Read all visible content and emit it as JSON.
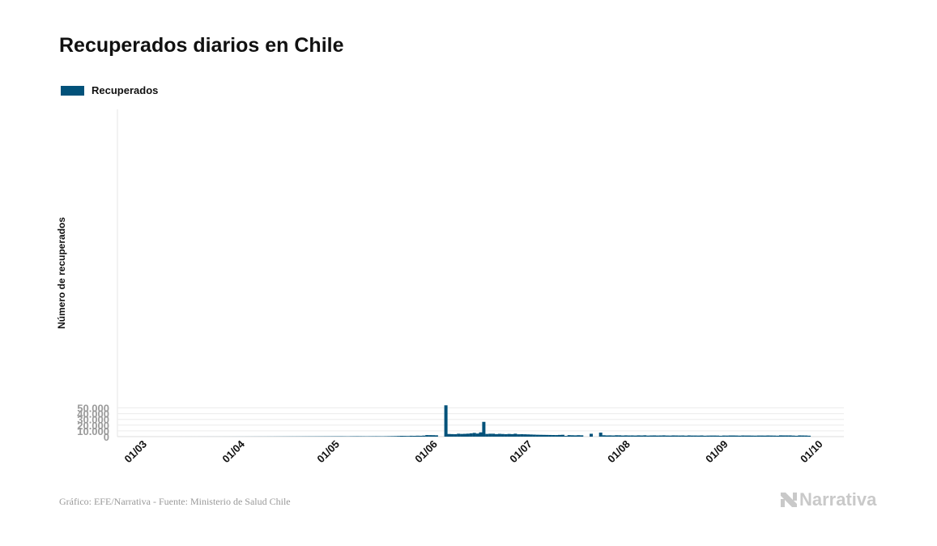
{
  "chart_data": {
    "type": "bar",
    "title": "Recuperados diarios en Chile",
    "legend": [
      "Recuperados"
    ],
    "legend_position": "top-left",
    "xlabel": "",
    "ylabel": "Número de recuperados",
    "ylim": [
      0,
      56000
    ],
    "yticks": [
      "0",
      "10.000",
      "20.000",
      "30.000",
      "40.000",
      "50.000"
    ],
    "ytick_values": [
      0,
      10000,
      20000,
      30000,
      40000,
      50000
    ],
    "xticks": [
      "01/03",
      "01/04",
      "01/05",
      "01/06",
      "01/07",
      "01/08",
      "01/09",
      "01/10"
    ],
    "xtick_days": [
      0,
      31,
      61,
      92,
      122,
      153,
      184,
      214
    ],
    "start_date": "01/03",
    "grid": true,
    "color": "#02527a",
    "values": [
      0,
      0,
      0,
      5,
      10,
      10,
      15,
      20,
      20,
      25,
      30,
      30,
      35,
      40,
      40,
      45,
      50,
      50,
      55,
      60,
      60,
      65,
      70,
      70,
      75,
      80,
      80,
      90,
      95,
      100,
      100,
      120,
      130,
      140,
      150,
      160,
      170,
      180,
      200,
      210,
      230,
      250,
      270,
      280,
      300,
      320,
      330,
      350,
      360,
      380,
      400,
      420,
      430,
      450,
      470,
      480,
      500,
      520,
      540,
      560,
      580,
      600,
      550,
      500,
      600,
      650,
      700,
      650,
      600,
      550,
      600,
      650,
      700,
      650,
      600,
      700,
      800,
      900,
      1000,
      1200,
      1400,
      1300,
      1200,
      1500,
      1400,
      1600,
      1500,
      1800,
      2700,
      2600,
      2500,
      2300,
      0,
      0,
      54500,
      4600,
      4400,
      4300,
      5100,
      4700,
      4900,
      5200,
      5800,
      6500,
      5400,
      7500,
      25700,
      4700,
      5100,
      5100,
      4400,
      4900,
      4600,
      4300,
      4700,
      4400,
      5100,
      4100,
      4300,
      4100,
      3900,
      3700,
      3500,
      3300,
      3200,
      3100,
      3000,
      2900,
      2800,
      2700,
      3000,
      3200,
      1300,
      2600,
      2400,
      2200,
      2500,
      2300,
      0,
      0,
      5000,
      0,
      0,
      7000,
      2400,
      2100,
      2200,
      2000,
      2400,
      2300,
      1900,
      2200,
      2000,
      2100,
      1900,
      2200,
      2000,
      2300,
      1800,
      2000,
      2100,
      1900,
      2000,
      2200,
      1900,
      1800,
      2100,
      2000,
      1900,
      2000,
      1700,
      2100,
      1900,
      1900,
      1800,
      2000,
      1600,
      1800,
      1900,
      1900,
      1800,
      1500,
      1900,
      1800,
      2000,
      2000,
      1900,
      1700,
      2000,
      1900,
      1900,
      1800,
      1700,
      1900,
      1900,
      1800,
      2000,
      1900,
      1800,
      1600,
      2200,
      2100,
      2100,
      2100,
      1800,
      1500,
      2100,
      2000,
      1900,
      1600
    ]
  },
  "footer": "Gráfico: EFE/Narrativa - Fuente: Ministerio de Salud Chile",
  "logo": "Narrativa"
}
